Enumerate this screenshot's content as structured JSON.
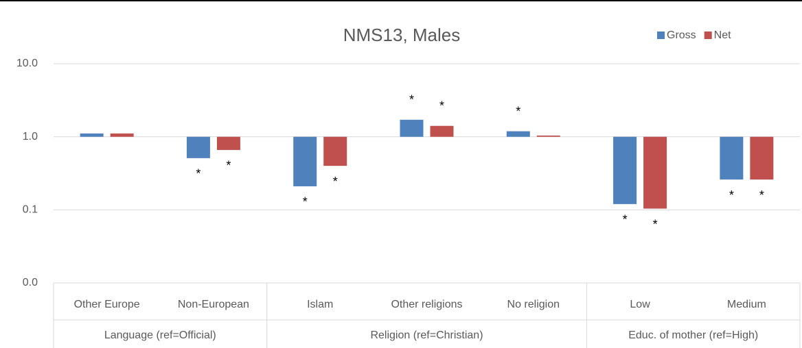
{
  "chart_data": {
    "type": "bar",
    "title": "NMS13, Males",
    "categories": [
      "Other Europe",
      "Non-European",
      "Islam",
      "Other religions",
      "No religion",
      "Low",
      "Medium"
    ],
    "groups": [
      {
        "name": "Language (ref=Official)",
        "size": 2
      },
      {
        "name": "Religion (ref=Christian)",
        "size": 3
      },
      {
        "name": "Educ. of mother (ref=High)",
        "size": 2
      }
    ],
    "series": [
      {
        "name": "Gross",
        "color": "#4f81bd",
        "values": [
          1.11,
          0.51,
          0.21,
          1.71,
          1.19,
          0.12,
          0.26
        ],
        "markers": [
          null,
          "*",
          "*",
          "*",
          "*",
          "*",
          "*"
        ]
      },
      {
        "name": "Net",
        "color": "#c0504d",
        "values": [
          1.11,
          0.66,
          0.4,
          1.41,
          1.04,
          0.104,
          0.26
        ],
        "markers": [
          null,
          "*",
          "*",
          "*",
          null,
          "*",
          "*"
        ]
      }
    ],
    "log_scale": true,
    "ylim": [
      0.01,
      10
    ],
    "yticks": [
      {
        "value": 0.01,
        "label": "0.0"
      },
      {
        "value": 0.1,
        "label": "0.1"
      },
      {
        "value": 1,
        "label": "1.0"
      },
      {
        "value": 10,
        "label": "10.0"
      }
    ],
    "grid": true,
    "legend": "top-right"
  }
}
